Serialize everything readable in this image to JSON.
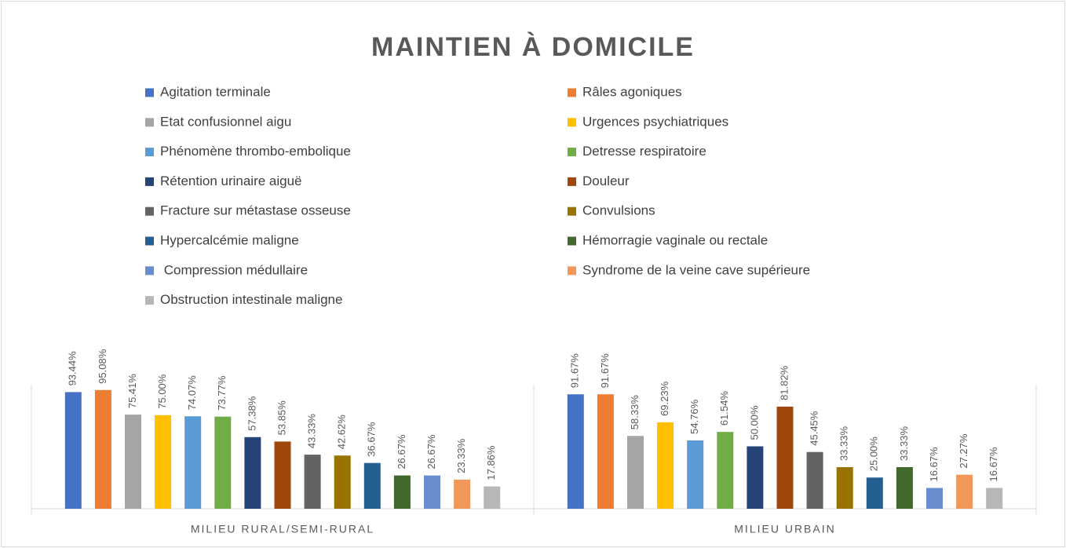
{
  "chart_data": {
    "type": "bar",
    "title": "MAINTIEN À DOMICILE",
    "categories": [
      "MILIEU RURAL/SEMI-RURAL",
      "MILIEU URBAIN"
    ],
    "ylim": [
      0,
      100
    ],
    "series": [
      {
        "name": "Agitation terminale",
        "color": "#4472c4",
        "values": [
          93.44,
          91.67
        ],
        "value_labels": [
          "93.44%",
          "91.67%"
        ]
      },
      {
        "name": "Râles agoniques",
        "color": "#ed7d31",
        "values": [
          95.08,
          91.67
        ],
        "value_labels": [
          "95.08%",
          "91.67%"
        ]
      },
      {
        "name": "Etat confusionnel aigu",
        "color": "#a5a5a5",
        "values": [
          75.41,
          58.33
        ],
        "value_labels": [
          "75.41%",
          "58.33%"
        ]
      },
      {
        "name": "Urgences psychiatriques",
        "color": "#ffc000",
        "values": [
          75.0,
          69.23
        ],
        "value_labels": [
          "75.00%",
          "69.23%"
        ]
      },
      {
        "name": "Phénomène thrombo-embolique",
        "color": "#5b9bd5",
        "values": [
          74.07,
          54.76
        ],
        "value_labels": [
          "74.07%",
          "54.76%"
        ]
      },
      {
        "name": "Detresse respiratoire",
        "color": "#70ad47",
        "values": [
          73.77,
          61.54
        ],
        "value_labels": [
          "73.77%",
          "61.54%"
        ]
      },
      {
        "name": "Rétention urinaire aiguë",
        "color": "#264478",
        "values": [
          57.38,
          50.0
        ],
        "value_labels": [
          "57.38%",
          "50.00%"
        ]
      },
      {
        "name": "Douleur",
        "color": "#9e480e",
        "values": [
          53.85,
          81.82
        ],
        "value_labels": [
          "53.85%",
          "81.82%"
        ]
      },
      {
        "name": "Fracture sur métastase osseuse",
        "color": "#636363",
        "values": [
          43.33,
          45.45
        ],
        "value_labels": [
          "43.33%",
          "45.45%"
        ]
      },
      {
        "name": "Convulsions",
        "color": "#997300",
        "values": [
          42.62,
          33.33
        ],
        "value_labels": [
          "42.62%",
          "33.33%"
        ]
      },
      {
        "name": "Hypercalcémie maligne",
        "color": "#255e91",
        "values": [
          36.67,
          25.0
        ],
        "value_labels": [
          "36.67%",
          "25.00%"
        ]
      },
      {
        "name": "Hémorragie vaginale ou rectale",
        "color": "#43682b",
        "values": [
          26.67,
          33.33
        ],
        "value_labels": [
          "26.67%",
          "33.33%"
        ]
      },
      {
        "name": " Compression médullaire",
        "color": "#698ed0",
        "values": [
          26.67,
          16.67
        ],
        "value_labels": [
          "26.67%",
          "16.67%"
        ]
      },
      {
        "name": "Syndrome de la veine cave supérieure",
        "color": "#f1975a",
        "values": [
          23.33,
          27.27
        ],
        "value_labels": [
          "23.33%",
          "27.27%"
        ]
      },
      {
        "name": "Obstruction intestinale maligne",
        "color": "#b7b7b7",
        "values": [
          17.86,
          16.67
        ],
        "value_labels": [
          "17.86%",
          "16.67%"
        ]
      }
    ]
  }
}
